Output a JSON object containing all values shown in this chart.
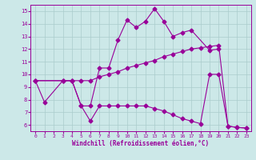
{
  "xlabel": "Windchill (Refroidissement éolien,°C)",
  "line_color": "#990099",
  "bg_color": "#cce8e8",
  "grid_color": "#aacccc",
  "ylim": [
    5.5,
    15.5
  ],
  "yticks": [
    6,
    7,
    8,
    9,
    10,
    11,
    12,
    13,
    14,
    15
  ],
  "xticks": [
    0,
    1,
    2,
    3,
    4,
    5,
    6,
    7,
    8,
    9,
    10,
    11,
    12,
    13,
    14,
    15,
    16,
    17,
    18,
    19,
    20,
    21,
    22,
    23
  ],
  "l1x": [
    0,
    1,
    3,
    4,
    5,
    6,
    7,
    8,
    9,
    10,
    11,
    12,
    13,
    14,
    15,
    16,
    17,
    19,
    20
  ],
  "l1y": [
    9.5,
    7.8,
    9.5,
    9.5,
    7.5,
    7.5,
    10.5,
    10.5,
    12.7,
    14.3,
    13.7,
    14.2,
    15.2,
    14.2,
    13.0,
    13.3,
    13.5,
    11.9,
    12.0
  ],
  "l2x": [
    0,
    3,
    4,
    5,
    6,
    7,
    8,
    9,
    10,
    11,
    12,
    13,
    14,
    15,
    16,
    17,
    18,
    19,
    20,
    21,
    22,
    23
  ],
  "l2y": [
    9.5,
    9.5,
    9.5,
    9.5,
    9.5,
    9.8,
    10.0,
    10.2,
    10.5,
    10.7,
    10.9,
    11.1,
    11.4,
    11.6,
    11.8,
    12.0,
    12.1,
    12.2,
    12.3,
    5.9,
    5.8,
    5.75
  ],
  "l3x": [
    0,
    3,
    4,
    5,
    6,
    7,
    8,
    9,
    10,
    11,
    12,
    13,
    14,
    15,
    16,
    17,
    18,
    19,
    20,
    21,
    22,
    23
  ],
  "l3y": [
    9.5,
    9.5,
    9.5,
    7.5,
    6.3,
    7.5,
    7.5,
    7.5,
    7.5,
    7.5,
    7.5,
    7.3,
    7.1,
    6.8,
    6.5,
    6.3,
    6.1,
    10.0,
    10.0,
    5.9,
    5.8,
    5.75
  ]
}
